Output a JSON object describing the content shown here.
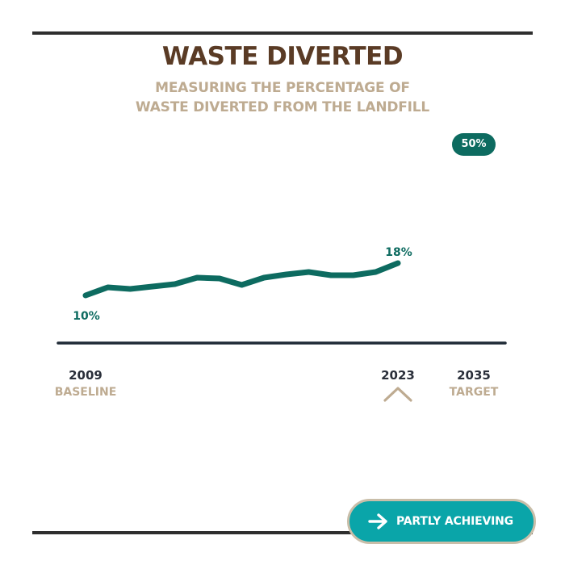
{
  "header": {
    "title": "WASTE DIVERTED",
    "subtitle_line1": "MEASURING THE PERCENTAGE OF",
    "subtitle_line2": "WASTE DIVERTED FROM THE LANDFILL"
  },
  "target_badge": "50%",
  "status_button": {
    "label": "PARTLY ACHIEVING",
    "icon": "arrow-right-icon"
  },
  "colors": {
    "line": "#0d6b60",
    "title": "#5a3b25",
    "subtitle": "#beab91",
    "axis": "#1f2a36",
    "button": "#0aa5a9"
  },
  "chart_data": {
    "type": "line",
    "title": "WASTE DIVERTED",
    "subtitle": "MEASURING THE PERCENTAGE OF WASTE DIVERTED FROM THE LANDFILL",
    "x": [
      2009,
      2010,
      2011,
      2012,
      2013,
      2014,
      2015,
      2016,
      2017,
      2018,
      2019,
      2020,
      2021,
      2022,
      2023
    ],
    "series": [
      {
        "name": "",
        "values": [
          10.0,
          12.0,
          11.6,
          12.2,
          12.8,
          14.4,
          14.2,
          12.6,
          14.4,
          15.2,
          15.8,
          15.0,
          15.0,
          15.8,
          18.0
        ]
      }
    ],
    "data_labels": [
      {
        "x": 2009,
        "text": "10%"
      },
      {
        "x": 2023,
        "text": "18%"
      }
    ],
    "target": {
      "x": 2035,
      "value": 50,
      "text": "50%"
    },
    "ylim": [
      0,
      50
    ],
    "x_ticks": [
      {
        "year": "2009",
        "label": "BASELINE"
      },
      {
        "year": "2023",
        "label": ""
      },
      {
        "year": "2035",
        "label": "TARGET"
      }
    ],
    "current_marker": "2023",
    "grid": false,
    "legend": "none"
  }
}
